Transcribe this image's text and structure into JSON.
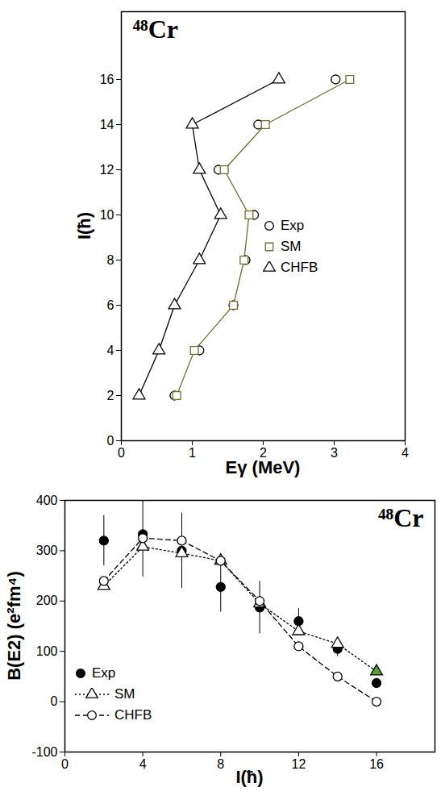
{
  "chart_data": [
    {
      "type": "scatter",
      "title": "⁴⁸Cr",
      "x_label": "Eγ (MeV)",
      "y_label": "I(ħ)",
      "y": [
        2,
        4,
        6,
        8,
        10,
        12,
        14,
        16
      ],
      "xlim": [
        0,
        4
      ],
      "xticks": [
        0,
        1,
        2,
        3,
        4
      ],
      "ylim": [
        0,
        19
      ],
      "yticks": [
        0,
        2,
        4,
        6,
        8,
        10,
        12,
        14,
        16
      ],
      "grid": false,
      "legend": "right",
      "series": [
        {
          "name": "Exp",
          "color": "#000000",
          "marker": "circle_open",
          "line_style": "none",
          "values": [
            0.75,
            1.1,
            1.58,
            1.75,
            1.87,
            1.37,
            1.93,
            3.02
          ]
        },
        {
          "name": "SM",
          "color": "#6e6e2e",
          "marker": "square_open",
          "line_style": "solid",
          "values": [
            0.78,
            1.03,
            1.58,
            1.73,
            1.8,
            1.45,
            2.03,
            3.22
          ]
        },
        {
          "name": "CHFB",
          "color": "#000000",
          "marker": "triangle_open",
          "line_style": "solid",
          "values": [
            0.25,
            0.53,
            0.75,
            1.1,
            1.4,
            1.1,
            1.0,
            2.22
          ]
        }
      ]
    },
    {
      "type": "scatter",
      "title": "⁴⁸Cr",
      "x_label": "I(ħ)",
      "y_label": "B(E2) (e²fm⁴)",
      "x": [
        2,
        4,
        6,
        8,
        10,
        12,
        14,
        16
      ],
      "xlim": [
        0,
        19
      ],
      "xticks": [
        0,
        4,
        8,
        12,
        16
      ],
      "ylim": [
        -100,
        400
      ],
      "yticks": [
        -100,
        0,
        100,
        200,
        300,
        400
      ],
      "grid": false,
      "legend": "lower left",
      "series": [
        {
          "name": "Exp",
          "color": "#000000",
          "marker": "circle_filled",
          "line_style": "none",
          "values": [
            320,
            333,
            300,
            228,
            187,
            160,
            105,
            37
          ],
          "errors": [
            50,
            85,
            75,
            50,
            52,
            25,
            15,
            null
          ]
        },
        {
          "name": "SM",
          "color": "#000000",
          "marker": "triangle_open",
          "line_style": "dotted",
          "values": [
            230,
            308,
            295,
            280,
            195,
            140,
            115,
            60
          ],
          "colors": [
            "#ffffff",
            "#ffffff",
            "#ffffff",
            "#ffffff",
            "#ffffff",
            "#ffffff",
            "#ffffff",
            "#5aa02c"
          ]
        },
        {
          "name": "CHFB",
          "color": "#000000",
          "marker": "circle_open",
          "line_style": "dashed",
          "values": [
            240,
            325,
            320,
            280,
            200,
            110,
            50,
            0
          ]
        }
      ]
    }
  ]
}
